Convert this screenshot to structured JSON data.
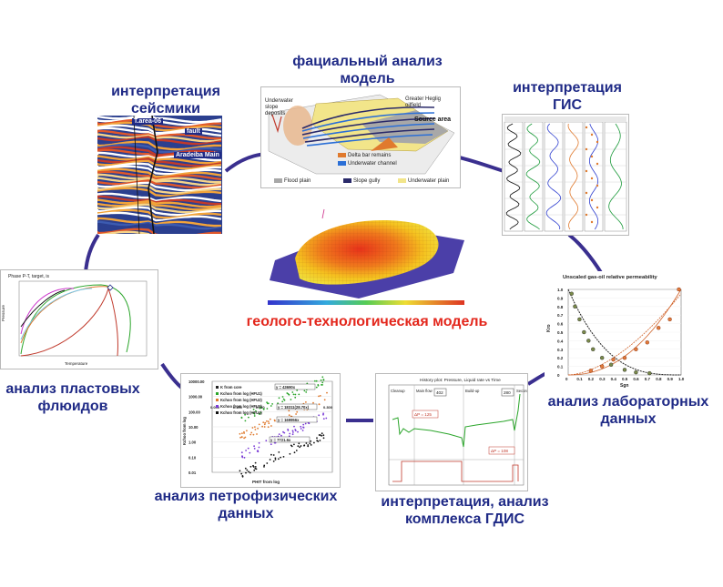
{
  "labels": {
    "seismic": "интерпретация\nсейсмики",
    "facies": "фациальный анализ\nмодель",
    "gis": "интерпретация\nГИС",
    "fluids": "анализ пластовых\nфлюидов",
    "center": "геолого-технологическая модель",
    "lab": "анализ лабораторных\nданных",
    "petro": "анализ петрофизических\nданных",
    "gdis": "интерпретация, анализ\nкомплекса ГДИС"
  },
  "seismic_panel": {
    "tag_area": "T.area-06",
    "tag_fault": "fault",
    "tag_main": "Aradeiba Main"
  },
  "facies_panel": {
    "slope_deposits": "Underwater\nslope\ndeposits",
    "greater_heglig": "Greater Heglig\noilfield",
    "source_area": "Source area",
    "legend": [
      "Delta bar remains",
      "Underwater channel",
      "Flood plain",
      "Slope gully",
      "Underwater plain"
    ],
    "colors": {
      "delta": "#e07a2e",
      "channel": "#2b6fd6",
      "flood": "#a8a8a8",
      "gully": "#2a2a6a",
      "plain": "#f2e58a"
    }
  },
  "relperm_panel": {
    "title": "Unscaled gas-oil relative permeability",
    "x_label": "Sgn",
    "y_label": "Kro",
    "x_ticks": [
      "0",
      "0.1",
      "0.2",
      "0.3",
      "0.4",
      "0.5",
      "0.6",
      "0.7",
      "0.8",
      "0.9",
      "1.0"
    ],
    "y_ticks": [
      "1.0",
      "0.9",
      "0.8",
      "0.7",
      "0.6",
      "0.5",
      "0.4",
      "0.3",
      "0.2",
      "0.1",
      "0"
    ]
  },
  "petro_panel": {
    "x_label": "PHIT from log",
    "y_label": "Kchoo from log",
    "y_ticks": [
      "10000.00",
      "1000.00",
      "100.00",
      "10.00",
      "1.00",
      "0.10",
      "0.01"
    ],
    "x_ticks": [
      "0.050",
      "0.100",
      "0.150",
      "0.200",
      "0.250",
      "0.300"
    ],
    "legend": [
      "K from core",
      "Kchoo from log (HFU1)",
      "Kchoo from log (HFU2)",
      "Kchoo from log (HFU3)",
      "Kchoo from log (HFU4)"
    ],
    "legend_colors": [
      "#222222",
      "#2aa52a",
      "#e07a2e",
      "#7a3bd6",
      "#111111"
    ],
    "eq1": "y = 43690x",
    "eq2": "y = 18311(28.70x)",
    "eq3": "y = 169956x",
    "eq4": "y = 7721.6x"
  },
  "gdis_panel": {
    "title": "History plot: Pressure, Liquid rate vs Time",
    "sections": [
      "Cleanup",
      "Main flow",
      "Build-up",
      "Secondary flow"
    ],
    "dp1": "ΔP = 125",
    "dp2": "ΔP = 108",
    "v1": "402",
    "v2": "280"
  },
  "fluid_panel": {
    "title": "Phase P-T, target, is",
    "y_label": "Pressure",
    "x_label": "Temperature"
  }
}
